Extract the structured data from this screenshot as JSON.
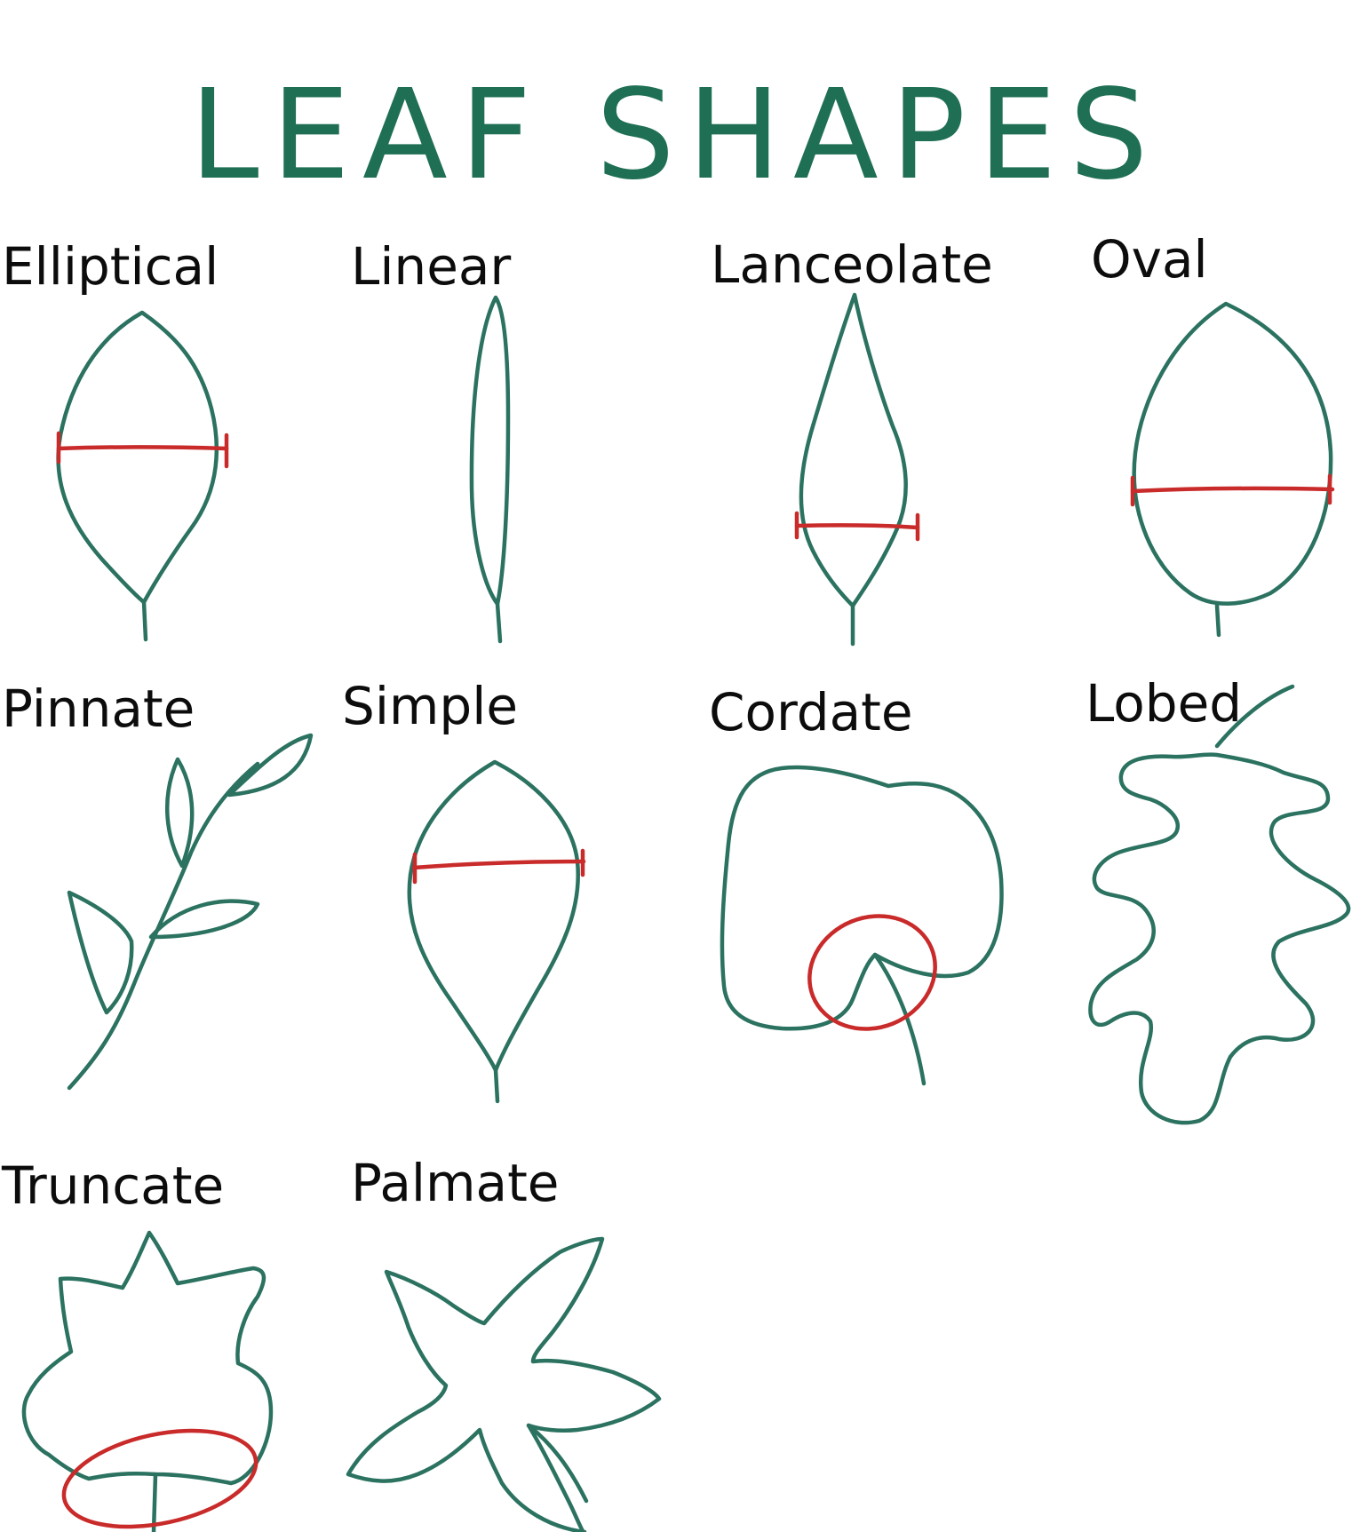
{
  "title": "LEAF SHAPES",
  "colors": {
    "title": "#1f6f55",
    "leaf_outline": "#2b7260",
    "measure_mark": "#c92a2a",
    "label_text": "#0c0c0c",
    "background": "#ffffff"
  },
  "shapes": [
    {
      "id": "elliptical",
      "label": "Elliptical"
    },
    {
      "id": "linear",
      "label": "Linear"
    },
    {
      "id": "lanceolate",
      "label": "Lanceolate"
    },
    {
      "id": "oval",
      "label": "Oval"
    },
    {
      "id": "pinnate",
      "label": "Pinnate"
    },
    {
      "id": "simple",
      "label": "Simple"
    },
    {
      "id": "cordate",
      "label": "Cordate"
    },
    {
      "id": "lobed",
      "label": "Lobed"
    },
    {
      "id": "truncate",
      "label": "Truncate"
    },
    {
      "id": "palmate",
      "label": "Palmate"
    }
  ]
}
